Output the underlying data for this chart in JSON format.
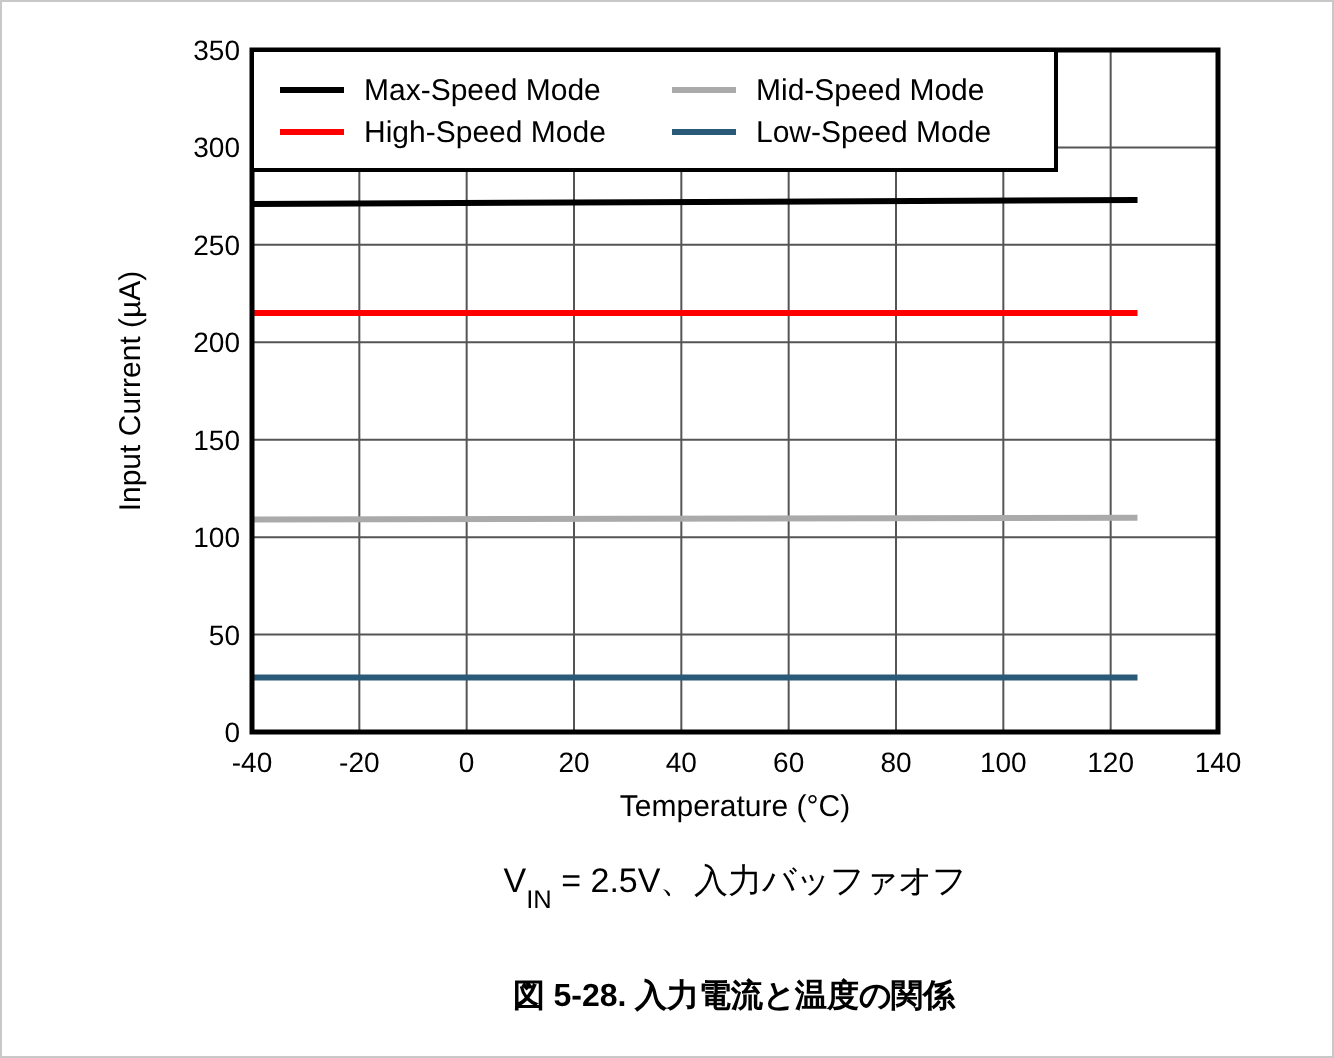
{
  "chart_data": {
    "type": "line",
    "title": "図 5-28. 入力電流と温度の関係",
    "xlabel": "Temperature (°C)",
    "ylabel": "Input Current (µA)",
    "annotations": [
      "V$_{IN}$ = 2.5V、入力バッファオフ"
    ],
    "xlim": [
      -40,
      140
    ],
    "xticks": [
      -40,
      -20,
      0,
      20,
      40,
      60,
      80,
      100,
      120,
      140
    ],
    "ylim": [
      0,
      350
    ],
    "yticks": [
      0,
      50,
      100,
      150,
      200,
      250,
      300,
      350
    ],
    "x": [
      -40,
      125
    ],
    "grid": true,
    "legend": "top left",
    "marker": "none",
    "line_style": "solid",
    "series": [
      {
        "name": "Max-Speed Mode",
        "color": "#000000",
        "values": [
          271,
          273
        ]
      },
      {
        "name": "High-Speed Mode",
        "color": "#ff0000",
        "values": [
          215,
          215
        ]
      },
      {
        "name": "Mid-Speed Mode",
        "color": "#aaaaaa",
        "values": [
          109,
          110
        ]
      },
      {
        "name": "Low-Speed Mode",
        "color": "#2a5a78",
        "values": [
          28,
          28
        ]
      }
    ]
  }
}
